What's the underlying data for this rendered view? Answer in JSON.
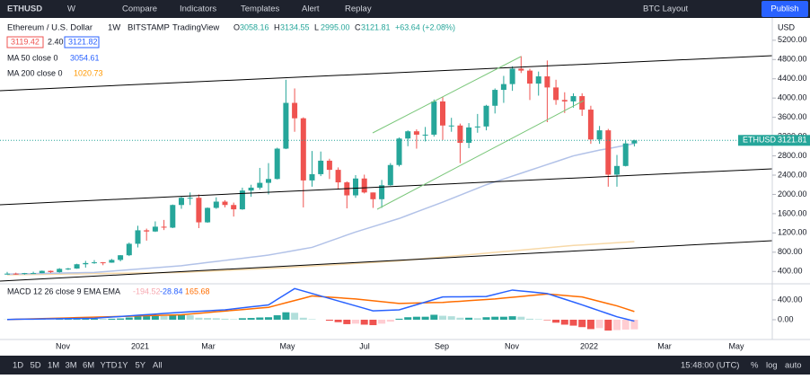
{
  "toolbar": {
    "symbol": "ETHUSD",
    "interval": "W",
    "compare": "Compare",
    "indicators": "Indicators",
    "templates": "Templates",
    "alert": "Alert",
    "replay": "Replay",
    "layout": "BTC Layout",
    "publish": "Publish"
  },
  "legend": {
    "name": "Ethereum / U.S. Dollar",
    "interval": "1W",
    "exchange": "BITSTAMP",
    "source": "TradingView",
    "ohlc": [
      {
        "label": "O",
        "value": "3058.16"
      },
      {
        "label": "H",
        "value": "3134.55"
      },
      {
        "label": "L",
        "value": "2995.00"
      },
      {
        "label": "C",
        "value": "3121.81"
      }
    ],
    "change": "+63.64 (+2.08%)",
    "bid": "3119.42",
    "spread": "2.40",
    "ask": "3121.82",
    "ma50": {
      "label": "MA 50 close 0",
      "value": "3054.61"
    },
    "ma200": {
      "label": "MA 200 close 0",
      "value": "1020.73"
    },
    "macd": {
      "label": "MACD 12 26 close 9 EMA EMA",
      "values": [
        "-194.52",
        "-28.84",
        "165.68"
      ]
    }
  },
  "price_axis": {
    "currency": "USD",
    "symbol": "ETHUSD",
    "last": "3121.81"
  },
  "time_axis": {
    "labels": [
      "Nov",
      "2021",
      "Mar",
      "May",
      "Jul",
      "Sep",
      "Nov",
      "2022",
      "Mar",
      "May"
    ]
  },
  "bottom_bar": {
    "ranges": [
      "1D",
      "5D",
      "1M",
      "3M",
      "6M",
      "YTD",
      "1Y",
      "5Y",
      "All"
    ],
    "time": "15:48:00 (UTC)",
    "percent": "%",
    "log": "log",
    "auto": "auto"
  },
  "chart_data": {
    "type": "candlestick",
    "up_color": "#26a69a",
    "down_color": "#ef5350",
    "ylim": [
      200,
      5700
    ],
    "yticks": [
      {
        "value": 400,
        "label": "400.00"
      },
      {
        "value": 800,
        "label": "800.00"
      },
      {
        "value": 1200,
        "label": "1200.00"
      },
      {
        "value": 1600,
        "label": "1600.00"
      },
      {
        "value": 2000,
        "label": "2000.00"
      },
      {
        "value": 2400,
        "label": "2400.00"
      },
      {
        "value": 2800,
        "label": "2800.00"
      },
      {
        "value": 3200,
        "label": "3200.00"
      },
      {
        "value": 3600,
        "label": "3600.00"
      },
      {
        "value": 4000,
        "label": "4000.00"
      },
      {
        "value": 4400,
        "label": "4400.00"
      },
      {
        "value": 4800,
        "label": "4800.00"
      },
      {
        "value": 5200,
        "label": "5200.00"
      }
    ],
    "candles": [
      [
        340,
        392,
        335,
        355
      ],
      [
        355,
        375,
        331,
        354
      ],
      [
        354,
        370,
        335,
        366
      ],
      [
        366,
        395,
        360,
        366
      ],
      [
        366,
        420,
        365,
        413
      ],
      [
        413,
        418,
        370,
        386
      ],
      [
        386,
        470,
        375,
        454
      ],
      [
        454,
        475,
        430,
        461
      ],
      [
        461,
        560,
        455,
        550
      ],
      [
        550,
        620,
        480,
        575
      ],
      [
        575,
        635,
        560,
        590
      ],
      [
        590,
        595,
        530,
        583
      ],
      [
        583,
        660,
        580,
        640
      ],
      [
        640,
        740,
        610,
        737
      ],
      [
        737,
        1000,
        720,
        975
      ],
      [
        975,
        1350,
        900,
        1255
      ],
      [
        1255,
        1290,
        1040,
        1230
      ],
      [
        1230,
        1440,
        1220,
        1330
      ],
      [
        1330,
        1470,
        1260,
        1310
      ],
      [
        1310,
        1790,
        1300,
        1780
      ],
      [
        1780,
        1950,
        1700,
        1930
      ],
      [
        1930,
        2040,
        1780,
        1930
      ],
      [
        1930,
        2000,
        1300,
        1420
      ],
      [
        1420,
        1730,
        1410,
        1720
      ],
      [
        1720,
        1940,
        1700,
        1850
      ],
      [
        1850,
        1880,
        1730,
        1780
      ],
      [
        1780,
        1830,
        1540,
        1690
      ],
      [
        1690,
        2140,
        1680,
        2080
      ],
      [
        2080,
        2200,
        1950,
        2140
      ],
      [
        2140,
        2550,
        2100,
        2240
      ],
      [
        2240,
        2650,
        2000,
        2320
      ],
      [
        2320,
        2970,
        2310,
        2950
      ],
      [
        2950,
        4380,
        2940,
        3900
      ],
      [
        3900,
        4200,
        3300,
        3580
      ],
      [
        3580,
        3600,
        1730,
        2290
      ],
      [
        2290,
        2900,
        2160,
        2420
      ],
      [
        2420,
        2890,
        2380,
        2700
      ],
      [
        2700,
        2740,
        2320,
        2510
      ],
      [
        2510,
        2560,
        2110,
        2250
      ],
      [
        2250,
        2270,
        1710,
        1980
      ],
      [
        1980,
        2400,
        1930,
        2330
      ],
      [
        2330,
        2410,
        2020,
        2040
      ],
      [
        2040,
        2040,
        1720,
        1900
      ],
      [
        1900,
        2300,
        1720,
        2190
      ],
      [
        2190,
        2650,
        2180,
        2610
      ],
      [
        2610,
        3180,
        2580,
        3160
      ],
      [
        3160,
        3330,
        3000,
        3310
      ],
      [
        3310,
        3350,
        2950,
        3240
      ],
      [
        3240,
        3400,
        3100,
        3240
      ],
      [
        3240,
        3970,
        3200,
        3930
      ],
      [
        3930,
        4030,
        3130,
        3430
      ],
      [
        3430,
        3590,
        3300,
        3430
      ],
      [
        3430,
        3470,
        2650,
        3070
      ],
      [
        3070,
        3480,
        2960,
        3390
      ],
      [
        3390,
        3670,
        3280,
        3410
      ],
      [
        3410,
        3860,
        3330,
        3840
      ],
      [
        3840,
        4200,
        3680,
        4170
      ],
      [
        4170,
        4460,
        3900,
        4290
      ],
      [
        4290,
        4660,
        4150,
        4610
      ],
      [
        4610,
        4870,
        4520,
        4570
      ],
      [
        4570,
        4610,
        3960,
        4300
      ],
      [
        4300,
        4550,
        4050,
        4450
      ],
      [
        4450,
        4780,
        3500,
        4220
      ],
      [
        4220,
        4380,
        3860,
        3960
      ],
      [
        3960,
        4120,
        3690,
        3930
      ],
      [
        3930,
        4100,
        3800,
        4040
      ],
      [
        4040,
        4100,
        3630,
        3760
      ],
      [
        3760,
        3840,
        3050,
        3140
      ],
      [
        3140,
        3420,
        3050,
        3330
      ],
      [
        3330,
        3360,
        2160,
        2410
      ],
      [
        2410,
        2820,
        2160,
        2590
      ],
      [
        2590,
        3120,
        2580,
        3058.16
      ],
      [
        3058.16,
        3134.55,
        2995,
        3121.81
      ]
    ],
    "ma50": {
      "color": "#b2c2e8",
      "values": [
        345,
        348,
        352,
        355,
        359,
        362,
        366,
        369,
        373,
        376,
        380,
        394,
        408,
        422,
        436,
        450,
        464,
        478,
        492,
        506,
        520,
        542,
        564,
        586,
        608,
        630,
        652,
        674,
        696,
        718,
        740,
        772,
        804,
        836,
        868,
        900,
        964,
        1028,
        1092,
        1156,
        1220,
        1276,
        1332,
        1388,
        1444,
        1500,
        1568,
        1636,
        1704,
        1772,
        1840,
        1912,
        1984,
        2056,
        2128,
        2200,
        2260,
        2320,
        2380,
        2440,
        2500,
        2560,
        2620,
        2680,
        2740,
        2800,
        2840,
        2880,
        2920,
        2950,
        2985,
        3020,
        3054.61
      ]
    },
    "ma200": {
      "color": "#f7d9a8",
      "values": [
        330,
        332,
        335,
        338,
        340,
        342,
        345,
        348,
        350,
        352,
        355,
        358,
        360,
        362,
        365,
        368,
        370,
        372,
        375,
        378,
        380,
        388,
        397,
        405,
        413,
        422,
        430,
        438,
        447,
        455,
        463,
        472,
        480,
        491,
        502,
        512,
        523,
        534,
        545,
        555,
        566,
        577,
        588,
        598,
        609,
        620,
        636,
        652,
        668,
        684,
        700,
        716,
        732,
        748,
        764,
        780,
        796,
        812,
        828,
        844,
        860,
        876,
        892,
        908,
        924,
        940,
        951,
        963,
        974,
        986,
        997,
        1009,
        1020.73
      ]
    },
    "macd_pane": {
      "ylim": [
        -400,
        690
      ],
      "yticks": [
        {
          "value": 0,
          "label": "0.00"
        },
        {
          "value": 400,
          "label": "400.00"
        }
      ],
      "histogram": [
        2,
        3,
        3,
        4,
        6,
        5,
        8,
        9,
        14,
        18,
        20,
        18,
        20,
        25,
        45,
        70,
        75,
        80,
        75,
        95,
        100,
        90,
        40,
        35,
        30,
        20,
        10,
        30,
        35,
        45,
        50,
        90,
        150,
        140,
        40,
        10,
        0,
        -20,
        -50,
        -90,
        -80,
        -100,
        -110,
        -80,
        -40,
        20,
        50,
        60,
        60,
        100,
        80,
        70,
        40,
        40,
        30,
        50,
        60,
        60,
        70,
        60,
        20,
        10,
        -10,
        -60,
        -100,
        -120,
        -150,
        -190,
        -170,
        -220,
        -210,
        -200,
        -194.52
      ],
      "macd": {
        "color": "#2962ff",
        "values": [
          5,
          8,
          10,
          12,
          15,
          18,
          20,
          22,
          25,
          28,
          30,
          42,
          54,
          66,
          78,
          90,
          102,
          114,
          126,
          138,
          150,
          160,
          170,
          180,
          190,
          200,
          220,
          240,
          260,
          280,
          300,
          410,
          520,
          630,
          580,
          530,
          480,
          430,
          380,
          330,
          280,
          230,
          180,
          187,
          193,
          200,
          252,
          304,
          356,
          408,
          460,
          462,
          464,
          466,
          468,
          470,
          513,
          557,
          600,
          582,
          565,
          548,
          530,
          472,
          415,
          358,
          300,
          240,
          180,
          120,
          60,
          16,
          -28.84
        ]
      },
      "signal": {
        "color": "#ff6d00",
        "values": [
          3,
          8,
          13,
          18,
          22,
          27,
          32,
          37,
          42,
          47,
          52,
          56,
          61,
          66,
          71,
          76,
          81,
          86,
          90,
          95,
          100,
          115,
          130,
          145,
          160,
          175,
          190,
          205,
          220,
          235,
          250,
          296,
          342,
          388,
          434,
          480,
          468,
          456,
          444,
          432,
          420,
          402,
          384,
          366,
          348,
          330,
          334,
          338,
          342,
          346,
          350,
          362,
          373,
          385,
          397,
          408,
          420,
          437,
          453,
          470,
          487,
          503,
          520,
          505,
          490,
          475,
          460,
          415,
          370,
          325,
          280,
          223,
          165.68
        ]
      }
    }
  }
}
